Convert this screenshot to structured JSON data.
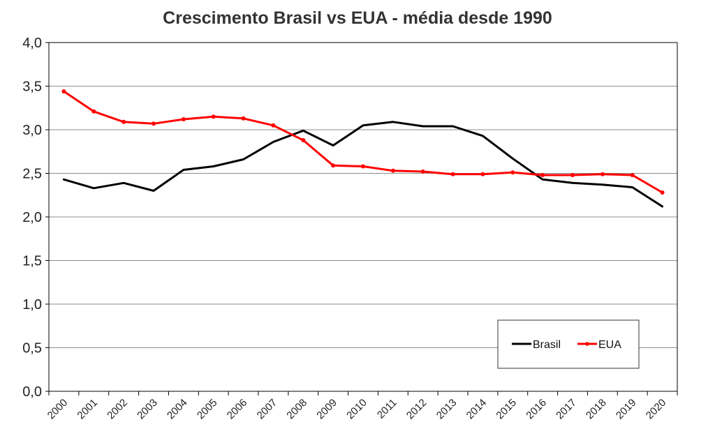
{
  "chart_data": {
    "type": "line",
    "title": "Crescimento Brasil vs EUA - média desde 1990",
    "xlabel": "",
    "ylabel": "",
    "categories": [
      "2000",
      "2001",
      "2002",
      "2003",
      "2004",
      "2005",
      "2006",
      "2007",
      "2008",
      "2009",
      "2010",
      "2011",
      "2012",
      "2013",
      "2014",
      "2015",
      "2016",
      "2017",
      "2018",
      "2019",
      "2020"
    ],
    "ylim": [
      0,
      4
    ],
    "yticks": [
      "0,0",
      "0,5",
      "1,0",
      "1,5",
      "2,0",
      "2,5",
      "3,0",
      "3,5",
      "4,0"
    ],
    "grid": true,
    "legend_position": "bottom-right",
    "series": [
      {
        "name": "Brasil",
        "color": "#000000",
        "markers": false,
        "values": [
          2.43,
          2.33,
          2.39,
          2.3,
          2.54,
          2.58,
          2.66,
          2.86,
          2.99,
          2.82,
          3.05,
          3.09,
          3.04,
          3.04,
          2.93,
          2.67,
          2.43,
          2.39,
          2.37,
          2.34,
          2.12
        ]
      },
      {
        "name": "EUA",
        "color": "#ff0000",
        "markers": true,
        "values": [
          3.44,
          3.21,
          3.09,
          3.07,
          3.12,
          3.15,
          3.13,
          3.05,
          2.88,
          2.59,
          2.58,
          2.53,
          2.52,
          2.49,
          2.49,
          2.51,
          2.48,
          2.48,
          2.49,
          2.48,
          2.28
        ]
      }
    ]
  }
}
